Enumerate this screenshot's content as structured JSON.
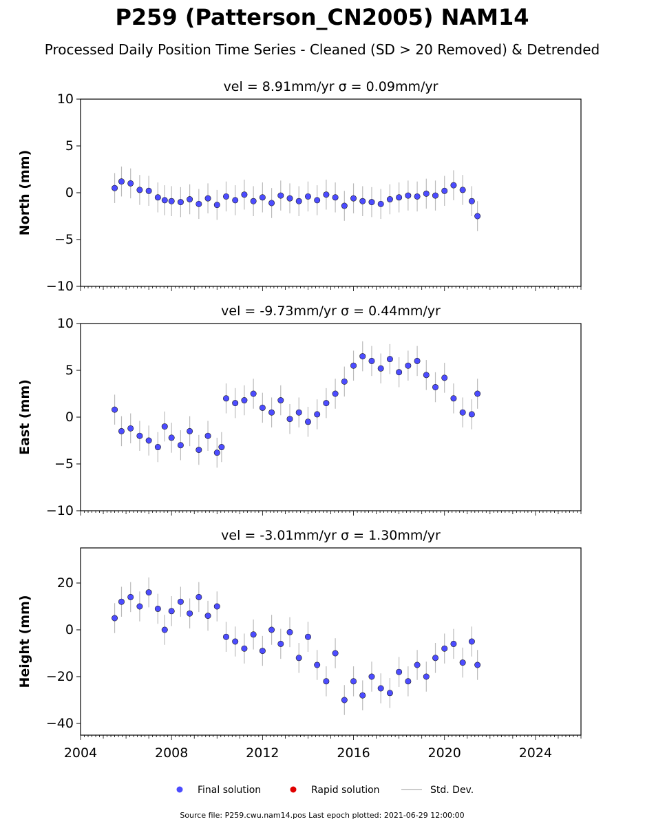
{
  "title": "P259 (Patterson_CN2005) NAM14",
  "subtitle": "Processed Daily Position Time Series - Cleaned (SD > 20 Removed) & Detrended",
  "footer": "Source file: P259.cwu.nam14.pos  Last epoch plotted: 2021-06-29 12:00:00",
  "colors": {
    "final": "#4c4cff",
    "rapid": "#e00000",
    "stddev": "#bbbbbb",
    "edge": "#1a1a1a"
  },
  "legend": {
    "final": "Final solution",
    "rapid": "Rapid solution",
    "stddev": "Std. Dev."
  },
  "chart_data": [
    {
      "type": "scatter",
      "title": "vel = 8.91mm/yr   σ = 0.09mm/yr",
      "ylabel": "North (mm)",
      "xlim": [
        2004,
        2026
      ],
      "ylim": [
        -10,
        10
      ],
      "yticks": [
        -10,
        -5,
        0,
        5,
        10
      ],
      "x": [
        2005.5,
        2005.8,
        2006.2,
        2006.6,
        2007.0,
        2007.4,
        2007.7,
        2008.0,
        2008.4,
        2008.8,
        2009.2,
        2009.6,
        2010.0,
        2010.4,
        2010.8,
        2011.2,
        2011.6,
        2012.0,
        2012.4,
        2012.8,
        2013.2,
        2013.6,
        2014.0,
        2014.4,
        2014.8,
        2015.2,
        2015.6,
        2016.0,
        2016.4,
        2016.8,
        2017.2,
        2017.6,
        2018.0,
        2018.4,
        2018.8,
        2019.2,
        2019.6,
        2020.0,
        2020.4,
        2020.8,
        2021.2,
        2021.45
      ],
      "y": [
        0.5,
        1.2,
        1.0,
        0.3,
        0.2,
        -0.5,
        -0.8,
        -0.9,
        -1.0,
        -0.7,
        -1.2,
        -0.6,
        -1.3,
        -0.4,
        -0.8,
        -0.2,
        -0.9,
        -0.5,
        -1.1,
        -0.3,
        -0.6,
        -0.9,
        -0.4,
        -0.8,
        -0.2,
        -0.5,
        -1.4,
        -0.6,
        -0.9,
        -1.0,
        -1.2,
        -0.7,
        -0.5,
        -0.3,
        -0.4,
        -0.1,
        -0.3,
        0.2,
        0.8,
        0.3,
        -0.9,
        -2.5
      ]
    },
    {
      "type": "scatter",
      "title": "vel = -9.73mm/yr   σ = 0.44mm/yr",
      "ylabel": "East (mm)",
      "xlim": [
        2004,
        2026
      ],
      "ylim": [
        -10,
        10
      ],
      "yticks": [
        -10,
        -5,
        0,
        5,
        10
      ],
      "x": [
        2005.5,
        2005.8,
        2006.2,
        2006.6,
        2007.0,
        2007.4,
        2007.7,
        2008.0,
        2008.4,
        2008.8,
        2009.2,
        2009.6,
        2010.0,
        2010.2,
        2010.4,
        2010.8,
        2011.2,
        2011.6,
        2012.0,
        2012.4,
        2012.8,
        2013.2,
        2013.6,
        2014.0,
        2014.4,
        2014.8,
        2015.2,
        2015.6,
        2016.0,
        2016.4,
        2016.8,
        2017.2,
        2017.6,
        2018.0,
        2018.4,
        2018.8,
        2019.2,
        2019.6,
        2020.0,
        2020.4,
        2020.8,
        2021.2,
        2021.45
      ],
      "y": [
        0.8,
        -1.5,
        -1.2,
        -2.0,
        -2.5,
        -3.2,
        -1.0,
        -2.2,
        -3.0,
        -1.5,
        -3.5,
        -2.0,
        -3.8,
        -3.2,
        2.0,
        1.5,
        1.8,
        2.5,
        1.0,
        0.5,
        1.8,
        -0.2,
        0.5,
        -0.5,
        0.3,
        1.5,
        2.5,
        3.8,
        5.5,
        6.5,
        6.0,
        5.2,
        6.2,
        4.8,
        5.5,
        6.0,
        4.5,
        3.2,
        4.2,
        2.0,
        0.5,
        0.3,
        2.5
      ]
    },
    {
      "type": "scatter",
      "title": "vel = -3.01mm/yr   σ = 1.30mm/yr",
      "ylabel": "Height (mm)",
      "xlim": [
        2004,
        2026
      ],
      "ylim": [
        -45,
        35
      ],
      "yticks": [
        -40,
        -20,
        0,
        20
      ],
      "x": [
        2005.5,
        2005.8,
        2006.2,
        2006.6,
        2007.0,
        2007.4,
        2007.7,
        2008.0,
        2008.4,
        2008.8,
        2009.2,
        2009.6,
        2010.0,
        2010.4,
        2010.8,
        2011.2,
        2011.6,
        2012.0,
        2012.4,
        2012.8,
        2013.2,
        2013.6,
        2014.0,
        2014.4,
        2014.8,
        2015.2,
        2015.6,
        2016.0,
        2016.4,
        2016.8,
        2017.2,
        2017.6,
        2018.0,
        2018.4,
        2018.8,
        2019.2,
        2019.6,
        2020.0,
        2020.4,
        2020.8,
        2021.2,
        2021.45
      ],
      "y": [
        5,
        12,
        14,
        10,
        16,
        9,
        0,
        8,
        12,
        7,
        14,
        6,
        10,
        -3,
        -5,
        -8,
        -2,
        -9,
        0,
        -6,
        -1,
        -12,
        -3,
        -15,
        -22,
        -10,
        -30,
        -22,
        -28,
        -20,
        -25,
        -27,
        -18,
        -22,
        -15,
        -20,
        -12,
        -8,
        -6,
        -14,
        -5,
        -15
      ]
    }
  ],
  "xticks": [
    "2004",
    "2008",
    "2012",
    "2016",
    "2020",
    "2024"
  ]
}
